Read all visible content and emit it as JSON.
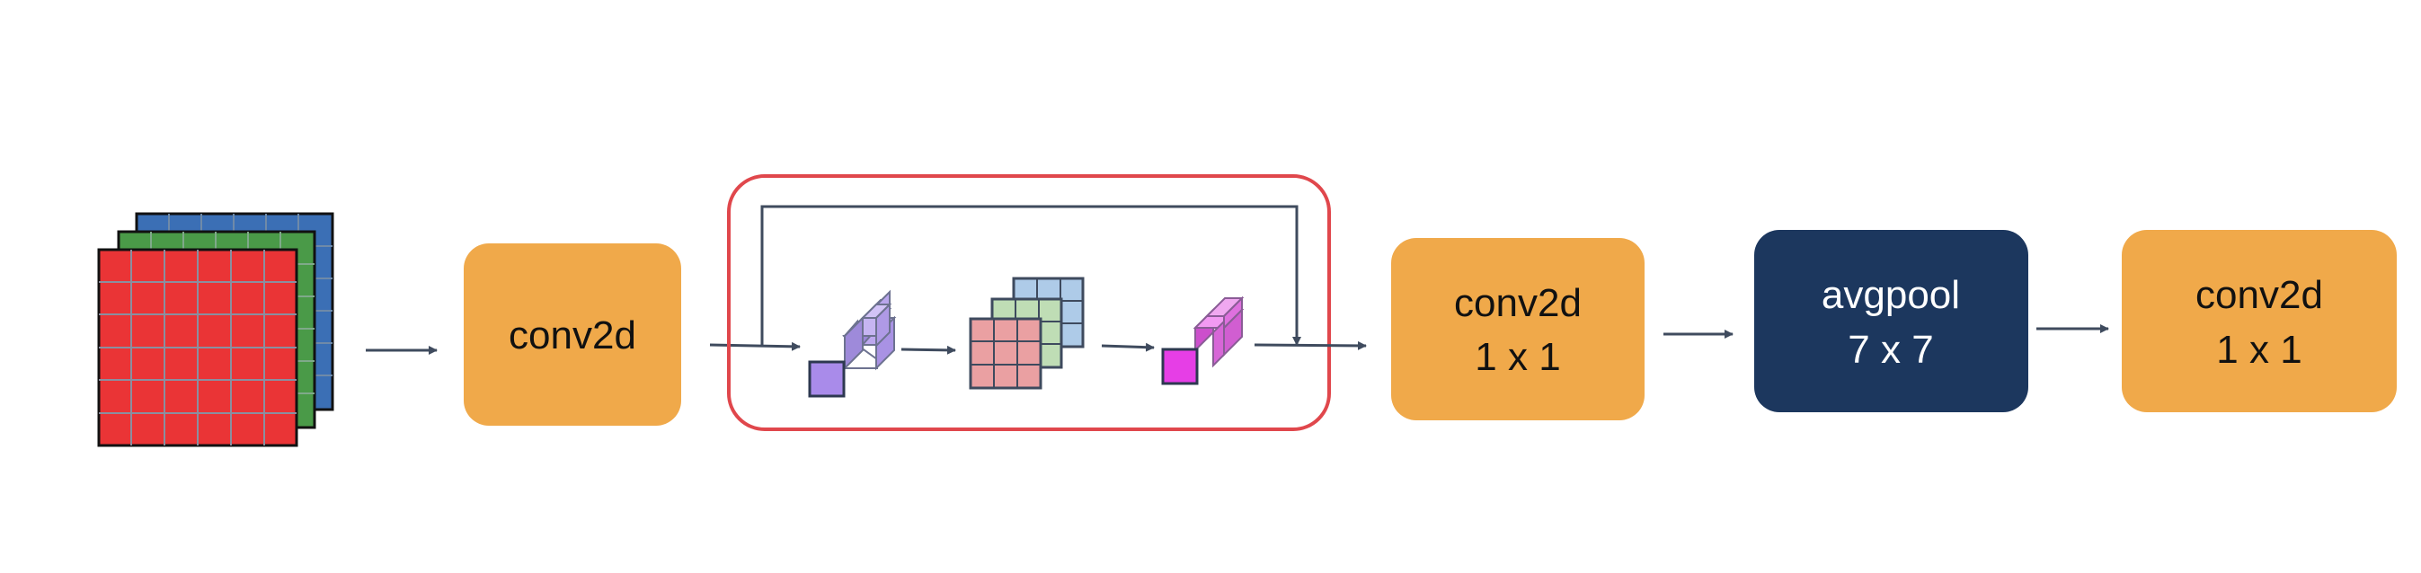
{
  "blocks": {
    "conv1": {
      "line1": "conv2d",
      "color": "#F0A94A"
    },
    "conv2": {
      "line1": "conv2d",
      "line2": "1 x 1",
      "color": "#F0A94A"
    },
    "pool": {
      "line1": "avgpool",
      "line2": "7 x 7",
      "color": "#1C375E"
    },
    "conv3": {
      "line1": "conv2d",
      "line2": "1 x 1",
      "color": "#F0A94A"
    }
  },
  "colors": {
    "arrow": "#3F4B5E",
    "highlight": "#E0474C",
    "input_red": "#EA3436",
    "input_green": "#4A9A48",
    "input_blue": "#3B6FB5",
    "depthwise_purple": "#A98BEA",
    "mid_red": "#EAA0A2",
    "mid_green": "#BFDDB5",
    "mid_blue": "#AECBE8",
    "pointwise_magenta": "#E860E8"
  }
}
